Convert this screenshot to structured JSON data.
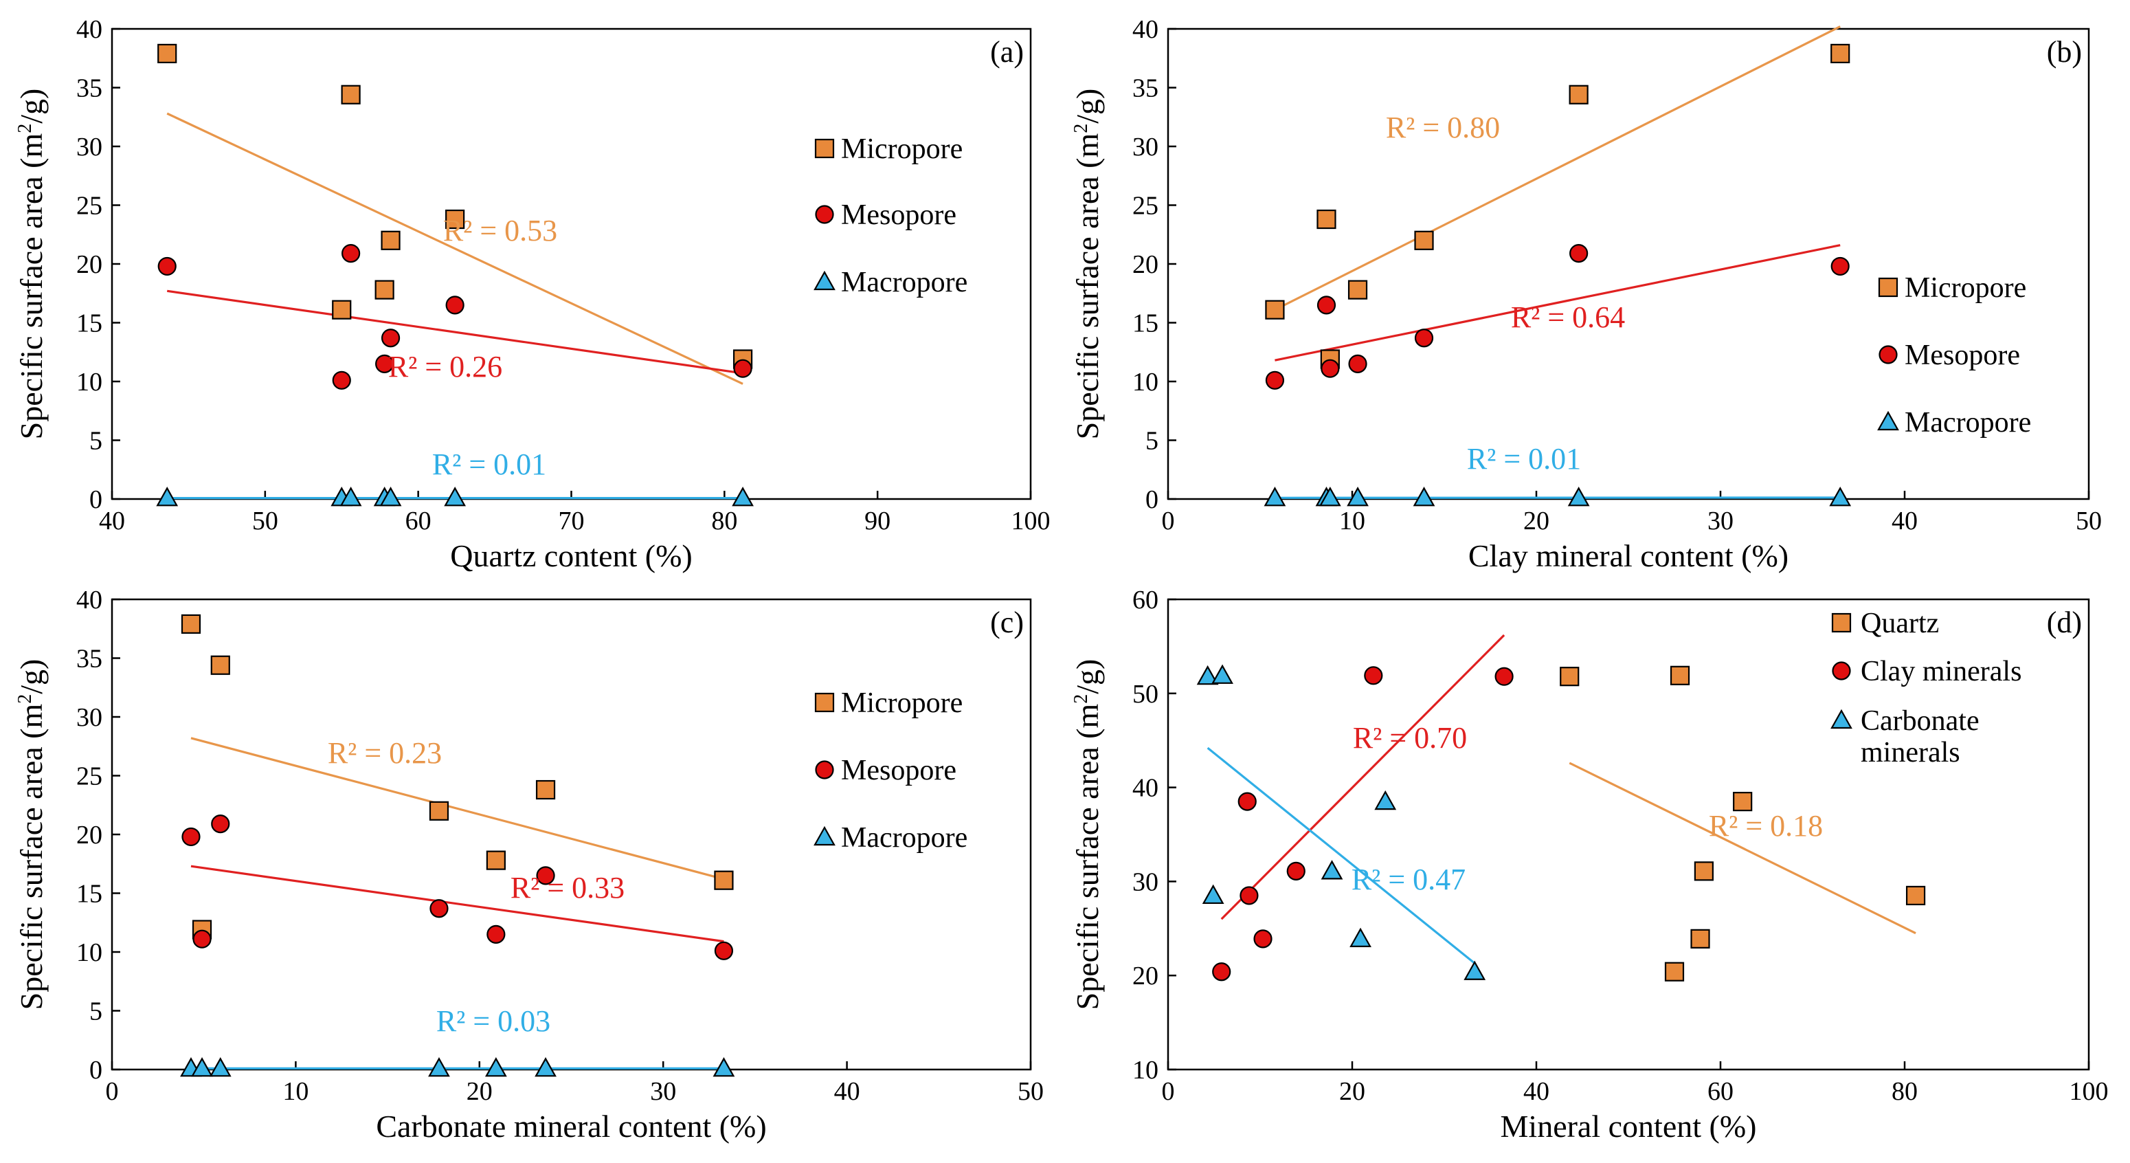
{
  "colors": {
    "micropore": "#E8893A",
    "mesopore": "#E01010",
    "macropore": "#3AB4E6",
    "line_orange": "#E8964A",
    "line_red": "#E02020",
    "line_blue": "#30AEE6"
  },
  "chart_data": [
    {
      "type": "scatter",
      "id": "a",
      "label": "(a)",
      "xlabel": "Quartz content (%)",
      "ylabel": "Specific surface area (m²/g)",
      "ylabel_parts": {
        "main": "Specific surface area (m",
        "sup": "2",
        "tail": "/g)"
      },
      "xlim": [
        40,
        100
      ],
      "xticks": [
        40,
        50,
        60,
        70,
        80,
        90,
        100
      ],
      "ylim": [
        0,
        40
      ],
      "yticks": [
        0,
        5,
        10,
        15,
        20,
        25,
        30,
        35,
        40
      ],
      "legend": [
        "Micropore",
        "Mesopore",
        "Macropore"
      ],
      "series": [
        {
          "name": "Micropore",
          "marker": "square",
          "color": "micropore",
          "x": [
            43.6,
            55.6,
            62.4,
            58.2,
            57.8,
            55.0,
            81.2
          ],
          "y": [
            37.9,
            34.4,
            23.8,
            22.0,
            17.8,
            16.1,
            11.9
          ],
          "fit": {
            "x": [
              43.6,
              81.2
            ],
            "y": [
              32.8,
              9.8
            ]
          },
          "r2": "R² = 0.53"
        },
        {
          "name": "Mesopore",
          "marker": "circle",
          "color": "mesopore",
          "x": [
            43.6,
            55.6,
            62.4,
            58.2,
            57.8,
            55.0,
            81.2
          ],
          "y": [
            19.8,
            20.9,
            16.5,
            13.7,
            11.5,
            10.1,
            11.1
          ],
          "fit": {
            "x": [
              43.6,
              81.2
            ],
            "y": [
              17.7,
              10.7
            ]
          },
          "r2": "R² = 0.26"
        },
        {
          "name": "Macropore",
          "marker": "triangle",
          "color": "macropore",
          "x": [
            43.6,
            55.0,
            55.6,
            57.8,
            58.2,
            62.4,
            81.2
          ],
          "y": [
            0.1,
            0.1,
            0.1,
            0.1,
            0.1,
            0.1,
            0.1
          ],
          "fit": {
            "x": [
              43.6,
              81.2
            ],
            "y": [
              0.08,
              0.08
            ]
          },
          "r2": "R² = 0.01"
        }
      ]
    },
    {
      "type": "scatter",
      "id": "b",
      "label": "(b)",
      "xlabel": "Clay mineral content (%)",
      "ylabel": "Specific surface area (m²/g)",
      "ylabel_parts": {
        "main": "Specific surface area (m",
        "sup": "2",
        "tail": "/g)"
      },
      "xlim": [
        0,
        50
      ],
      "xticks": [
        0,
        10,
        20,
        30,
        40,
        50
      ],
      "ylim": [
        0,
        40
      ],
      "yticks": [
        0,
        5,
        10,
        15,
        20,
        25,
        30,
        35,
        40
      ],
      "legend": [
        "Micropore",
        "Mesopore",
        "Macropore"
      ],
      "series": [
        {
          "name": "Micropore",
          "marker": "square",
          "color": "micropore",
          "x": [
            5.8,
            8.6,
            8.8,
            10.3,
            13.9,
            22.3,
            36.5
          ],
          "y": [
            16.1,
            23.8,
            11.9,
            17.8,
            22.0,
            34.4,
            37.9
          ],
          "fit": {
            "x": [
              5.8,
              36.5
            ],
            "y": [
              16.1,
              40.2
            ]
          },
          "r2": "R² = 0.80"
        },
        {
          "name": "Mesopore",
          "marker": "circle",
          "color": "mesopore",
          "x": [
            5.8,
            8.6,
            8.8,
            10.3,
            13.9,
            22.3,
            36.5
          ],
          "y": [
            10.1,
            16.5,
            11.1,
            11.5,
            13.7,
            20.9,
            19.8
          ],
          "fit": {
            "x": [
              5.8,
              36.5
            ],
            "y": [
              11.8,
              21.6
            ]
          },
          "r2": "R² = 0.64"
        },
        {
          "name": "Macropore",
          "marker": "triangle",
          "color": "macropore",
          "x": [
            5.8,
            8.6,
            8.8,
            10.3,
            13.9,
            22.3,
            36.5
          ],
          "y": [
            0.1,
            0.1,
            0.1,
            0.1,
            0.1,
            0.1,
            0.1
          ],
          "fit": {
            "x": [
              5.8,
              36.5
            ],
            "y": [
              0.1,
              0.12
            ]
          },
          "r2": "R² = 0.01"
        }
      ]
    },
    {
      "type": "scatter",
      "id": "c",
      "label": "(c)",
      "xlabel": "Carbonate mineral content (%)",
      "ylabel": "Specific surface area (m²/g)",
      "ylabel_parts": {
        "main": "Specific surface area (m",
        "sup": "2",
        "tail": "/g)"
      },
      "xlim": [
        0,
        50
      ],
      "xticks": [
        0,
        10,
        20,
        30,
        40,
        50
      ],
      "ylim": [
        0,
        40
      ],
      "yticks": [
        0,
        5,
        10,
        15,
        20,
        25,
        30,
        35,
        40
      ],
      "legend": [
        "Micropore",
        "Mesopore",
        "Macropore"
      ],
      "series": [
        {
          "name": "Micropore",
          "marker": "square",
          "color": "micropore",
          "x": [
            4.3,
            5.9,
            4.9,
            17.8,
            20.9,
            23.6,
            33.3
          ],
          "y": [
            37.9,
            34.4,
            11.9,
            22.0,
            17.8,
            23.8,
            16.1
          ],
          "fit": {
            "x": [
              4.3,
              33.3
            ],
            "y": [
              28.2,
              16.2
            ]
          },
          "r2": "R² = 0.23"
        },
        {
          "name": "Mesopore",
          "marker": "circle",
          "color": "mesopore",
          "x": [
            4.3,
            5.9,
            4.9,
            17.8,
            20.9,
            23.6,
            33.3
          ],
          "y": [
            19.8,
            20.9,
            11.1,
            13.7,
            11.5,
            16.5,
            10.1
          ],
          "fit": {
            "x": [
              4.3,
              33.3
            ],
            "y": [
              17.3,
              10.9
            ]
          },
          "r2": "R² = 0.33"
        },
        {
          "name": "Macropore",
          "marker": "triangle",
          "color": "macropore",
          "x": [
            4.3,
            4.9,
            5.9,
            17.8,
            20.9,
            23.6,
            33.3
          ],
          "y": [
            0.1,
            0.1,
            0.1,
            0.1,
            0.1,
            0.1,
            0.1
          ],
          "fit": {
            "x": [
              4.3,
              33.3
            ],
            "y": [
              0.1,
              0.1
            ]
          },
          "r2": "R² = 0.03"
        }
      ]
    },
    {
      "type": "scatter",
      "id": "d",
      "label": "(d)",
      "xlabel": "Mineral content (%)",
      "ylabel": "Specific surface area (m²/g)",
      "ylabel_parts": {
        "main": "Specific surface area (m",
        "sup": "2",
        "tail": "/g)"
      },
      "xlim": [
        0,
        100
      ],
      "xticks": [
        0,
        20,
        40,
        60,
        80,
        100
      ],
      "ylim": [
        10,
        60
      ],
      "yticks": [
        10,
        20,
        30,
        40,
        50,
        60
      ],
      "legend": [
        "Quartz",
        "Clay minerals",
        "Carbonate minerals"
      ],
      "legend_lines": [
        [
          "Quartz"
        ],
        [
          "Clay minerals"
        ],
        [
          "Carbonate",
          "minerals"
        ]
      ],
      "series": [
        {
          "name": "Quartz",
          "marker": "square",
          "color": "micropore",
          "x": [
            43.6,
            55.6,
            62.4,
            58.2,
            57.8,
            55.0,
            81.2
          ],
          "y": [
            51.8,
            51.9,
            38.5,
            31.1,
            23.9,
            20.4,
            28.5
          ],
          "fit": {
            "x": [
              43.6,
              81.2
            ],
            "y": [
              42.6,
              24.5
            ]
          },
          "r2": "R² = 0.18"
        },
        {
          "name": "Clay minerals",
          "marker": "circle",
          "color": "mesopore",
          "x": [
            5.8,
            8.6,
            8.8,
            10.3,
            13.9,
            22.3,
            36.5
          ],
          "y": [
            20.4,
            38.5,
            28.5,
            23.9,
            31.1,
            51.9,
            51.8
          ],
          "fit": {
            "x": [
              5.8,
              36.5
            ],
            "y": [
              26.0,
              56.2
            ]
          },
          "r2": "R² = 0.70"
        },
        {
          "name": "Carbonate minerals",
          "marker": "triangle",
          "color": "macropore",
          "x": [
            4.3,
            5.9,
            4.9,
            17.8,
            20.9,
            23.6,
            33.3
          ],
          "y": [
            51.8,
            51.9,
            28.5,
            31.1,
            23.9,
            38.5,
            20.4
          ],
          "fit": {
            "x": [
              4.3,
              33.3
            ],
            "y": [
              44.2,
              21.3
            ]
          },
          "r2": "R² = 0.47"
        }
      ]
    }
  ]
}
